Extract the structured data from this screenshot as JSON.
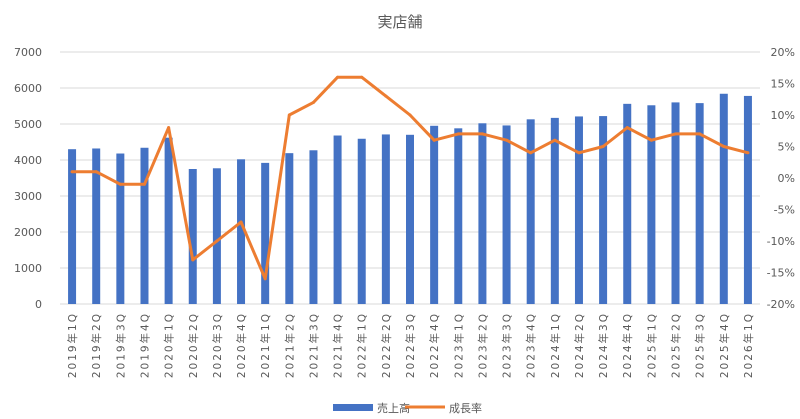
{
  "chart_data": {
    "type": "bar",
    "title": "実店舗",
    "categories": [
      "2019年1Q",
      "2019年2Q",
      "2019年3Q",
      "2019年4Q",
      "2020年1Q",
      "2020年2Q",
      "2020年3Q",
      "2020年4Q",
      "2021年1Q",
      "2021年2Q",
      "2021年3Q",
      "2021年4Q",
      "2022年1Q",
      "2022年2Q",
      "2022年3Q",
      "2022年4Q",
      "2023年1Q",
      "2023年2Q",
      "2023年3Q",
      "2023年4Q",
      "2024年1Q",
      "2024年2Q",
      "2024年3Q",
      "2024年4Q",
      "2025年1Q",
      "2025年2Q",
      "2025年3Q",
      "2025年4Q",
      "2026年1Q"
    ],
    "series": [
      {
        "name": "売上高",
        "type": "bar",
        "axis": "left",
        "color": "#4472C4",
        "values": [
          4300,
          4320,
          4180,
          4340,
          4620,
          3750,
          3770,
          4020,
          3920,
          4190,
          4270,
          4680,
          4590,
          4710,
          4700,
          4950,
          4880,
          5020,
          4960,
          5130,
          5170,
          5210,
          5220,
          5560,
          5520,
          5600,
          5580,
          5840,
          5780
        ]
      },
      {
        "name": "成長率",
        "type": "line",
        "axis": "right",
        "color": "#ED7D31",
        "values": [
          1,
          1,
          -1,
          -1,
          8,
          -13,
          -10,
          -7,
          -16,
          10,
          12,
          16,
          16,
          13,
          10,
          6,
          7,
          7,
          6,
          4,
          6,
          4,
          5,
          8,
          6,
          7,
          7,
          5,
          4
        ]
      }
    ],
    "y_left": {
      "min": 0,
      "max": 7000,
      "step": 1000,
      "ticks": [
        "0",
        "1000",
        "2000",
        "3000",
        "4000",
        "5000",
        "6000",
        "7000"
      ]
    },
    "y_right": {
      "min": -20,
      "max": 20,
      "step": 5,
      "ticks": [
        "-20%",
        "-15%",
        "-10%",
        "-5%",
        "0%",
        "5%",
        "10%",
        "15%",
        "20%"
      ]
    },
    "grid": true,
    "legend": {
      "position": "bottom",
      "items": [
        "売上高",
        "成長率"
      ]
    }
  }
}
